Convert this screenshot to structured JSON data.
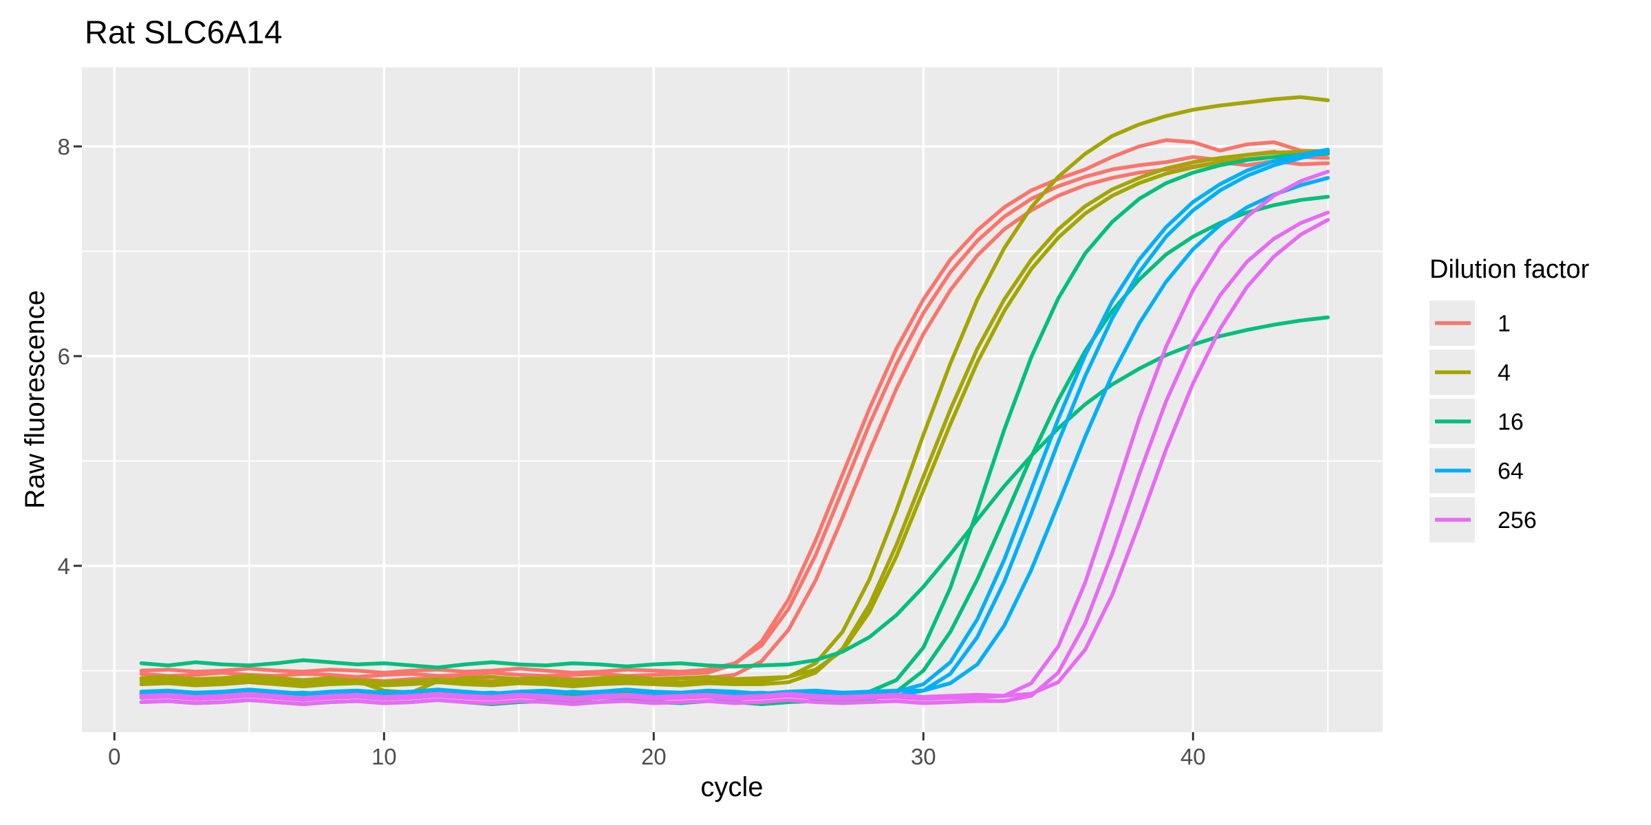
{
  "figure": {
    "title": "Rat SLC6A14",
    "x_axis": {
      "label": "cycle",
      "major_ticks": [
        0,
        10,
        20,
        30,
        40
      ],
      "minor_ticks": [
        5,
        15,
        25,
        35,
        45
      ],
      "range": [
        -1.2,
        47.2
      ]
    },
    "y_axis": {
      "label": "Raw fluorescence",
      "major_ticks": [
        4,
        6,
        8
      ],
      "minor_ticks": [
        3,
        5,
        7
      ],
      "range": [
        2.41,
        8.75
      ]
    },
    "legend": {
      "title": "Dilution factor",
      "entries": [
        {
          "label": "1",
          "color": "#F8766D"
        },
        {
          "label": "4",
          "color": "#A3A500"
        },
        {
          "label": "16",
          "color": "#00BF7D"
        },
        {
          "label": "64",
          "color": "#00B0F6"
        },
        {
          "label": "256",
          "color": "#E76BF3"
        }
      ]
    },
    "colors": {
      "panel_bg": "#EBEBEB",
      "grid": "#FFFFFF",
      "tick_mark": "#333333",
      "tick_label": "#4D4D4D",
      "axis_title": "#000000",
      "title": "#000000",
      "legend_key_bg": "#EBEBEB",
      "page_bg": "#FFFFFF"
    }
  },
  "chart_data": {
    "type": "line",
    "title": "Rat SLC6A14",
    "xlabel": "cycle",
    "ylabel": "Raw fluorescence",
    "legend_title": "Dilution factor",
    "legend_position": "right",
    "grid": true,
    "xlim": [
      -1.2,
      47.2
    ],
    "ylim": [
      2.41,
      8.75
    ],
    "x": [
      1,
      2,
      3,
      4,
      5,
      6,
      7,
      8,
      9,
      10,
      11,
      12,
      13,
      14,
      15,
      16,
      17,
      18,
      19,
      20,
      21,
      22,
      23,
      24,
      25,
      26,
      27,
      28,
      29,
      30,
      31,
      32,
      33,
      34,
      35,
      36,
      37,
      38,
      39,
      40,
      41,
      42,
      43,
      44,
      45
    ],
    "series": [
      {
        "name": "dilution-1-rep1",
        "dilution": "1",
        "color": "#F8766D",
        "values": [
          2.97,
          2.95,
          2.96,
          2.98,
          2.96,
          2.95,
          2.97,
          2.96,
          2.94,
          2.96,
          2.97,
          2.95,
          2.96,
          2.98,
          2.96,
          2.95,
          2.96,
          2.97,
          2.95,
          2.96,
          2.97,
          2.98,
          3.06,
          3.28,
          3.68,
          4.24,
          4.87,
          5.5,
          6.07,
          6.54,
          6.92,
          7.2,
          7.42,
          7.58,
          7.69,
          7.78,
          7.9,
          8.0,
          8.06,
          8.04,
          7.96,
          8.02,
          8.04,
          7.96,
          7.95
        ]
      },
      {
        "name": "dilution-1-rep2",
        "dilution": "1",
        "color": "#F8766D",
        "values": [
          3.0,
          3.01,
          2.99,
          3.0,
          3.02,
          3.0,
          2.99,
          3.01,
          3.0,
          2.98,
          3.0,
          3.01,
          2.99,
          3.0,
          3.02,
          3.0,
          2.98,
          2.99,
          3.01,
          3.0,
          2.99,
          3.01,
          3.07,
          3.24,
          3.59,
          4.1,
          4.72,
          5.35,
          5.92,
          6.41,
          6.8,
          7.1,
          7.33,
          7.5,
          7.62,
          7.71,
          7.78,
          7.82,
          7.85,
          7.9,
          7.87,
          7.92,
          7.95,
          7.9,
          7.89
        ]
      },
      {
        "name": "dilution-1-rep3",
        "dilution": "1",
        "color": "#F8766D",
        "values": [
          2.92,
          2.93,
          2.91,
          2.92,
          2.94,
          2.92,
          2.91,
          2.93,
          2.92,
          2.9,
          2.92,
          2.93,
          2.91,
          2.9,
          2.92,
          2.94,
          2.92,
          2.91,
          2.93,
          2.92,
          2.93,
          2.93,
          2.96,
          3.09,
          3.39,
          3.86,
          4.46,
          5.09,
          5.69,
          6.21,
          6.63,
          6.96,
          7.21,
          7.39,
          7.53,
          7.63,
          7.7,
          7.75,
          7.78,
          7.81,
          7.85,
          7.82,
          7.86,
          7.83,
          7.84
        ]
      },
      {
        "name": "dilution-4-rep1",
        "dilution": "4",
        "color": "#A3A500",
        "values": [
          2.9,
          2.91,
          2.89,
          2.9,
          2.92,
          2.9,
          2.88,
          2.9,
          2.91,
          2.89,
          2.9,
          2.92,
          2.9,
          2.89,
          2.91,
          2.9,
          2.88,
          2.9,
          2.91,
          2.9,
          2.89,
          2.9,
          2.89,
          2.9,
          2.94,
          3.07,
          3.37,
          3.87,
          4.53,
          5.25,
          5.93,
          6.54,
          7.03,
          7.42,
          7.71,
          7.93,
          8.1,
          8.21,
          8.29,
          8.35,
          8.39,
          8.42,
          8.45,
          8.47,
          8.44
        ]
      },
      {
        "name": "dilution-4-rep2",
        "dilution": "4",
        "color": "#A3A500",
        "values": [
          2.87,
          2.88,
          2.86,
          2.87,
          2.89,
          2.87,
          2.85,
          2.87,
          2.88,
          2.86,
          2.87,
          2.89,
          2.87,
          2.86,
          2.88,
          2.87,
          2.85,
          2.87,
          2.88,
          2.87,
          2.86,
          2.88,
          2.87,
          2.87,
          2.89,
          2.98,
          3.21,
          3.63,
          4.2,
          4.85,
          5.49,
          6.07,
          6.54,
          6.92,
          7.21,
          7.43,
          7.59,
          7.7,
          7.79,
          7.85,
          7.89,
          7.92,
          7.94,
          7.95,
          7.96
        ]
      },
      {
        "name": "dilution-4-rep3",
        "dilution": "4",
        "color": "#A3A500",
        "values": [
          2.93,
          2.94,
          2.92,
          2.93,
          2.95,
          2.93,
          2.91,
          2.93,
          2.9,
          2.81,
          2.79,
          2.9,
          2.93,
          2.94,
          2.92,
          2.93,
          2.91,
          2.93,
          2.94,
          2.92,
          2.93,
          2.94,
          2.92,
          2.93,
          2.94,
          3.01,
          3.19,
          3.56,
          4.09,
          4.72,
          5.35,
          5.94,
          6.43,
          6.83,
          7.13,
          7.36,
          7.53,
          7.65,
          7.74,
          7.8,
          7.85,
          7.88,
          7.9,
          7.92,
          7.93
        ]
      },
      {
        "name": "dilution-16-rep1",
        "dilution": "16",
        "color": "#00BF7D",
        "values": [
          2.78,
          2.79,
          2.77,
          2.78,
          2.8,
          2.78,
          2.76,
          2.78,
          2.79,
          2.77,
          2.78,
          2.8,
          2.78,
          2.77,
          2.79,
          2.78,
          2.76,
          2.78,
          2.79,
          2.77,
          2.78,
          2.79,
          2.77,
          2.78,
          2.79,
          2.78,
          2.78,
          2.8,
          2.91,
          3.22,
          3.79,
          4.53,
          5.3,
          5.99,
          6.55,
          6.98,
          7.28,
          7.5,
          7.65,
          7.75,
          7.82,
          7.87,
          7.9,
          7.92,
          7.93
        ]
      },
      {
        "name": "dilution-16-rep2",
        "dilution": "16",
        "color": "#00BF7D",
        "values": [
          2.7,
          2.71,
          2.69,
          2.7,
          2.72,
          2.7,
          2.68,
          2.7,
          2.71,
          2.69,
          2.7,
          2.72,
          2.7,
          2.68,
          2.7,
          2.71,
          2.69,
          2.7,
          2.72,
          2.7,
          2.69,
          2.71,
          2.7,
          2.68,
          2.7,
          2.71,
          2.7,
          2.72,
          2.8,
          3.0,
          3.37,
          3.87,
          4.45,
          5.04,
          5.58,
          6.05,
          6.43,
          6.73,
          6.97,
          7.14,
          7.27,
          7.37,
          7.44,
          7.49,
          7.52
        ]
      },
      {
        "name": "dilution-16-rep3",
        "dilution": "16",
        "color": "#00BF7D",
        "values": [
          3.07,
          3.05,
          3.08,
          3.06,
          3.05,
          3.07,
          3.1,
          3.08,
          3.06,
          3.07,
          3.05,
          3.03,
          3.06,
          3.08,
          3.06,
          3.05,
          3.07,
          3.06,
          3.04,
          3.06,
          3.07,
          3.05,
          3.04,
          3.05,
          3.06,
          3.1,
          3.18,
          3.32,
          3.53,
          3.8,
          4.11,
          4.44,
          4.76,
          5.05,
          5.31,
          5.54,
          5.73,
          5.88,
          6.01,
          6.11,
          6.19,
          6.25,
          6.3,
          6.34,
          6.37
        ]
      },
      {
        "name": "dilution-64-rep1",
        "dilution": "64",
        "color": "#00B0F6",
        "values": [
          2.78,
          2.77,
          2.79,
          2.78,
          2.76,
          2.78,
          2.79,
          2.77,
          2.78,
          2.8,
          2.78,
          2.76,
          2.78,
          2.79,
          2.77,
          2.78,
          2.8,
          2.78,
          2.77,
          2.79,
          2.78,
          2.76,
          2.78,
          2.79,
          2.77,
          2.78,
          2.79,
          2.78,
          2.8,
          2.87,
          3.08,
          3.49,
          4.06,
          4.73,
          5.4,
          6.01,
          6.52,
          6.92,
          7.23,
          7.47,
          7.64,
          7.77,
          7.86,
          7.92,
          7.97
        ]
      },
      {
        "name": "dilution-64-rep2",
        "dilution": "64",
        "color": "#00B0F6",
        "values": [
          2.75,
          2.76,
          2.74,
          2.75,
          2.77,
          2.75,
          2.73,
          2.75,
          2.76,
          2.74,
          2.75,
          2.77,
          2.75,
          2.74,
          2.76,
          2.75,
          2.73,
          2.75,
          2.76,
          2.74,
          2.75,
          2.76,
          2.74,
          2.75,
          2.77,
          2.75,
          2.74,
          2.75,
          2.76,
          2.81,
          2.97,
          3.32,
          3.85,
          4.5,
          5.18,
          5.81,
          6.36,
          6.8,
          7.14,
          7.39,
          7.58,
          7.72,
          7.82,
          7.89,
          7.95
        ]
      },
      {
        "name": "dilution-64-rep3",
        "dilution": "64",
        "color": "#00B0F6",
        "values": [
          2.8,
          2.81,
          2.79,
          2.8,
          2.82,
          2.8,
          2.78,
          2.8,
          2.81,
          2.79,
          2.8,
          2.82,
          2.8,
          2.78,
          2.8,
          2.81,
          2.79,
          2.8,
          2.82,
          2.8,
          2.79,
          2.81,
          2.8,
          2.78,
          2.8,
          2.81,
          2.79,
          2.8,
          2.81,
          2.81,
          2.88,
          3.06,
          3.43,
          3.96,
          4.59,
          5.23,
          5.82,
          6.31,
          6.71,
          7.02,
          7.25,
          7.42,
          7.54,
          7.63,
          7.7
        ]
      },
      {
        "name": "dilution-256-rep1",
        "dilution": "256",
        "color": "#E76BF3",
        "values": [
          2.74,
          2.75,
          2.73,
          2.74,
          2.76,
          2.74,
          2.72,
          2.74,
          2.75,
          2.73,
          2.74,
          2.76,
          2.74,
          2.73,
          2.75,
          2.74,
          2.72,
          2.74,
          2.75,
          2.73,
          2.74,
          2.75,
          2.73,
          2.74,
          2.76,
          2.74,
          2.73,
          2.74,
          2.75,
          2.73,
          2.74,
          2.74,
          2.76,
          2.88,
          3.23,
          3.84,
          4.61,
          5.4,
          6.09,
          6.63,
          7.04,
          7.33,
          7.53,
          7.67,
          7.76
        ]
      },
      {
        "name": "dilution-256-rep2",
        "dilution": "256",
        "color": "#E76BF3",
        "values": [
          2.7,
          2.71,
          2.69,
          2.7,
          2.72,
          2.7,
          2.68,
          2.7,
          2.71,
          2.69,
          2.7,
          2.72,
          2.7,
          2.69,
          2.71,
          2.7,
          2.68,
          2.7,
          2.71,
          2.69,
          2.7,
          2.71,
          2.69,
          2.7,
          2.72,
          2.7,
          2.69,
          2.7,
          2.71,
          2.69,
          2.7,
          2.71,
          2.71,
          2.76,
          2.98,
          3.45,
          4.12,
          4.87,
          5.57,
          6.14,
          6.58,
          6.9,
          7.12,
          7.27,
          7.37
        ]
      },
      {
        "name": "dilution-256-rep3",
        "dilution": "256",
        "color": "#E76BF3",
        "values": [
          2.76,
          2.77,
          2.75,
          2.76,
          2.78,
          2.76,
          2.74,
          2.76,
          2.77,
          2.75,
          2.76,
          2.78,
          2.76,
          2.75,
          2.77,
          2.76,
          2.74,
          2.76,
          2.77,
          2.75,
          2.76,
          2.77,
          2.75,
          2.76,
          2.78,
          2.76,
          2.75,
          2.76,
          2.77,
          2.75,
          2.76,
          2.77,
          2.76,
          2.78,
          2.89,
          3.2,
          3.72,
          4.4,
          5.11,
          5.74,
          6.26,
          6.66,
          6.95,
          7.16,
          7.3
        ]
      }
    ]
  }
}
